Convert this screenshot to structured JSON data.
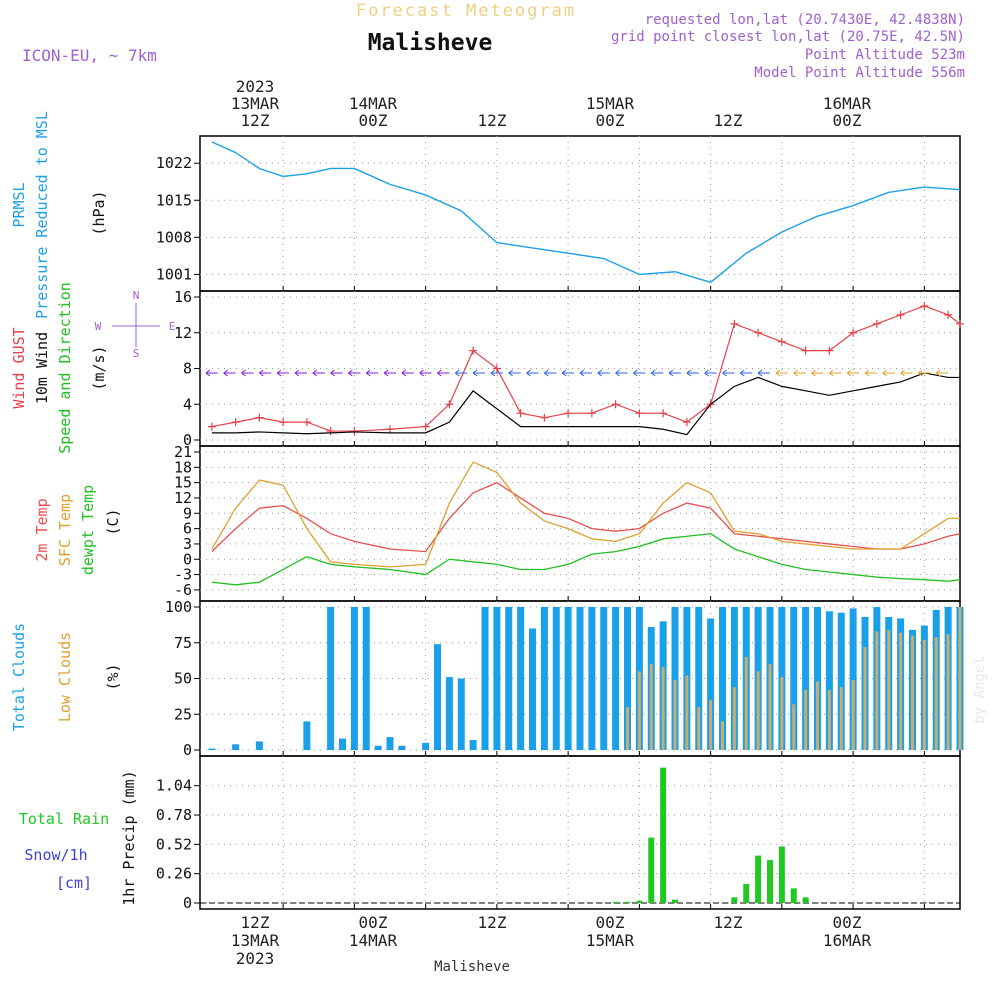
{
  "header": {
    "subtitle": "Forecast Meteogram",
    "location": "Malisheve",
    "model": "ICON-EU, ~ 7km",
    "requested": "requested lon,lat (20.7430E, 42.4838N)",
    "gridpoint": "grid point closest lon,lat (20.75E, 42.5N)",
    "point_alt": "Point Altitude 523m",
    "model_alt": "Model Point Altitude 556m",
    "footer": "Malisheve",
    "credit": "by Angel"
  },
  "axis_top": {
    "year": "2023",
    "labels": [
      {
        "l1": "13MAR",
        "l2": "12Z"
      },
      {
        "l1": "14MAR",
        "l2": "00Z"
      },
      {
        "l1": "",
        "l2": "12Z"
      },
      {
        "l1": "15MAR",
        "l2": "00Z"
      },
      {
        "l1": "",
        "l2": "12Z"
      },
      {
        "l1": "16MAR",
        "l2": "00Z"
      }
    ]
  },
  "axis_bottom": {
    "year": "2023",
    "labels": [
      {
        "l1": "12Z",
        "l2": "13MAR"
      },
      {
        "l1": "00Z",
        "l2": "14MAR"
      },
      {
        "l1": "12Z",
        "l2": ""
      },
      {
        "l1": "00Z",
        "l2": "15MAR"
      },
      {
        "l1": "12Z",
        "l2": ""
      },
      {
        "l1": "00Z",
        "l2": "16MAR"
      }
    ]
  },
  "colors": {
    "pressure": "#1ca0e6",
    "gust": "#e8404a",
    "wind": "#000000",
    "t2m": "#e85050",
    "sfc": "#e0a030",
    "dew": "#20c020",
    "total_clouds": "#1aa0e8",
    "low_clouds": "#c8ac70",
    "rain": "#22c822",
    "snow": "#4040e0",
    "purple": "#a060d0",
    "title": "#f0d080"
  },
  "panels": {
    "pressure": {
      "lab1": "PRMSL",
      "lab2": "Pressure Reduced to MSL",
      "unit": "(hPa)"
    },
    "wind": {
      "lab1": "Wind GUST",
      "lab2": "10m Wind",
      "lab3": "Speed and Direction",
      "unit": "(m/s)",
      "compass_n": "N",
      "compass_s": "S",
      "compass_w": "W",
      "compass_e": "E"
    },
    "temp": {
      "lab1": "2m Temp",
      "lab2": "SFC Temp",
      "lab3": "dewpt Temp",
      "unit": "(C)"
    },
    "clouds": {
      "lab1": "Total Clouds",
      "lab2": "Low Clouds",
      "unit": "(%)"
    },
    "precip": {
      "lab1": "Total  Rain",
      "lab2": "Snow/1h",
      "lab3": "[cm]",
      "unit": "1hr Precip (mm)"
    }
  },
  "chart_data": [
    {
      "type": "line",
      "title": "PRMSL",
      "ylabel": "hPa",
      "x_hours": [
        0,
        4,
        8,
        12,
        16,
        20,
        24,
        30,
        36,
        42,
        48,
        54,
        60,
        66,
        72,
        78,
        84,
        90,
        96,
        102,
        108,
        114,
        120,
        126
      ],
      "ylim": [
        999,
        1026
      ],
      "yticks": [
        1001,
        1008,
        1015,
        1022
      ],
      "series": [
        {
          "name": "PRMSL",
          "values": [
            1026,
            1024,
            1021,
            1019.5,
            1020,
            1021,
            1021,
            1018,
            1016,
            1013,
            1007,
            1006,
            1005,
            1004,
            1001,
            1001.5,
            999.5,
            1005,
            1009,
            1012,
            1014,
            1016.5,
            1017.5,
            1017
          ]
        }
      ]
    },
    {
      "type": "line",
      "title": "Wind",
      "ylabel": "m/s",
      "x_hours": [
        0,
        4,
        8,
        12,
        16,
        20,
        24,
        30,
        36,
        40,
        44,
        48,
        52,
        56,
        60,
        64,
        68,
        72,
        76,
        80,
        84,
        88,
        92,
        96,
        100,
        104,
        108,
        112,
        116,
        120,
        124,
        126
      ],
      "ylim": [
        0,
        16
      ],
      "yticks": [
        0,
        4,
        8,
        12,
        16
      ],
      "series": [
        {
          "name": "Wind GUST",
          "values": [
            1.5,
            2,
            2.5,
            2,
            2,
            1,
            1,
            1.2,
            1.5,
            4,
            10,
            8,
            3,
            2.5,
            3,
            3,
            4,
            3,
            3,
            2,
            4,
            13,
            12,
            11,
            10,
            10,
            12,
            13,
            14,
            15,
            14,
            13
          ]
        },
        {
          "name": "10m Wind",
          "values": [
            0.8,
            0.8,
            0.9,
            0.8,
            0.7,
            0.8,
            0.9,
            0.8,
            0.8,
            2,
            5.5,
            3.5,
            1.5,
            1.5,
            1.5,
            1.5,
            1.5,
            1.5,
            1.2,
            0.6,
            4,
            6,
            7,
            6,
            5.5,
            5,
            5.5,
            6,
            6.5,
            7.5,
            7,
            7
          ]
        }
      ]
    },
    {
      "type": "line",
      "title": "Temperature",
      "ylabel": "C",
      "x_hours": [
        0,
        4,
        8,
        12,
        16,
        20,
        24,
        30,
        36,
        40,
        44,
        48,
        52,
        56,
        60,
        64,
        68,
        72,
        76,
        80,
        84,
        88,
        92,
        96,
        100,
        104,
        108,
        112,
        116,
        120,
        124,
        126
      ],
      "ylim": [
        -7,
        21
      ],
      "yticks": [
        -6,
        -3,
        0,
        3,
        6,
        9,
        12,
        15,
        18,
        21
      ],
      "series": [
        {
          "name": "2m Temp",
          "values": [
            1.5,
            6,
            10,
            10.5,
            8,
            5,
            3.5,
            2,
            1.5,
            8,
            13,
            15,
            12,
            9,
            8,
            6,
            5.5,
            6,
            9,
            11,
            10,
            5,
            4.5,
            4,
            3.5,
            3,
            2.5,
            2,
            2,
            3,
            4.5,
            5
          ]
        },
        {
          "name": "SFC Temp",
          "values": [
            2,
            10,
            15.5,
            14.5,
            6,
            -0.5,
            -1,
            -1.5,
            -1,
            11,
            19,
            17,
            11,
            7.5,
            6,
            4,
            3.5,
            5,
            11,
            15,
            13,
            5.5,
            5,
            3.5,
            3,
            2.5,
            2,
            2,
            2,
            5,
            8,
            8
          ]
        },
        {
          "name": "dewpt Temp",
          "values": [
            -4.5,
            -5,
            -4.5,
            -2,
            0.5,
            -1,
            -1.5,
            -2,
            -3,
            0,
            -0.5,
            -1,
            -2,
            -2,
            -1,
            1,
            1.5,
            2.5,
            4,
            4.5,
            5,
            2,
            0.5,
            -1,
            -2,
            -2.5,
            -3,
            -3.5,
            -3.8,
            -4,
            -4.3,
            -4
          ]
        }
      ]
    },
    {
      "type": "bar",
      "title": "Clouds",
      "ylabel": "%",
      "x_hours": [
        0,
        2,
        4,
        6,
        8,
        10,
        12,
        14,
        16,
        18,
        20,
        22,
        24,
        26,
        28,
        30,
        32,
        34,
        36,
        38,
        40,
        42,
        44,
        46,
        48,
        50,
        52,
        54,
        56,
        58,
        60,
        62,
        64,
        66,
        68,
        70,
        72,
        74,
        76,
        78,
        80,
        82,
        84,
        86,
        88,
        90,
        92,
        94,
        96,
        98,
        100,
        102,
        104,
        106,
        108,
        110,
        112,
        114,
        116,
        118,
        120,
        122,
        124,
        126
      ],
      "ylim": [
        0,
        100
      ],
      "yticks": [
        0,
        25,
        50,
        75,
        100
      ],
      "series": [
        {
          "name": "Total Clouds",
          "values": [
            1,
            0,
            4,
            0,
            6,
            0,
            0,
            0,
            20,
            0,
            100,
            8,
            100,
            100,
            3,
            9,
            3,
            0,
            5,
            74,
            51,
            50,
            7,
            100,
            100,
            100,
            100,
            85,
            100,
            100,
            100,
            100,
            100,
            100,
            100,
            100,
            100,
            86,
            90,
            100,
            100,
            100,
            92,
            100,
            100,
            100,
            100,
            100,
            100,
            100,
            100,
            100,
            97,
            96,
            99,
            93,
            100,
            93,
            92,
            84,
            87,
            98,
            100,
            100
          ]
        },
        {
          "name": "Low Clouds",
          "values": [
            0,
            0,
            0,
            0,
            0,
            0,
            0,
            0,
            0,
            0,
            0,
            0,
            0,
            0,
            0,
            0,
            0,
            0,
            0,
            0,
            0,
            0,
            0,
            0,
            0,
            0,
            0,
            0,
            0,
            0,
            0,
            0,
            0,
            0,
            0,
            30,
            55,
            60,
            58,
            49,
            52,
            30,
            35,
            20,
            44,
            65,
            55,
            60,
            51,
            32,
            42,
            48,
            42,
            44,
            49,
            72,
            83,
            84,
            82,
            80,
            77,
            79,
            81,
            100
          ]
        }
      ]
    },
    {
      "type": "bar",
      "title": "1hr Precip",
      "ylabel": "mm",
      "x_hours": [
        68,
        70,
        72,
        74,
        76,
        78,
        80,
        82,
        84,
        86,
        88,
        90,
        92,
        94,
        96,
        98,
        100
      ],
      "ylim": [
        0,
        1.25
      ],
      "yticks": [
        0,
        0.26,
        0.52,
        0.78,
        1.04
      ],
      "series": [
        {
          "name": "Total Rain",
          "values": [
            0.01,
            0.01,
            0.02,
            0.58,
            1.2,
            0.03,
            0,
            0,
            0,
            0,
            0.05,
            0.17,
            0.42,
            0.38,
            0.5,
            0.13,
            0.05
          ]
        }
      ]
    }
  ]
}
